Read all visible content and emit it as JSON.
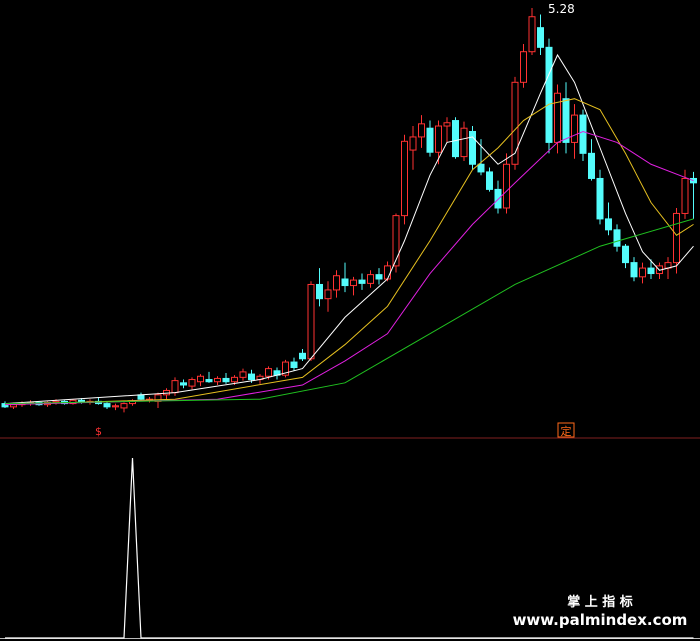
{
  "chart_data": {
    "type": "candlestick",
    "high_label": "5.28",
    "signal_markers": [
      {
        "text": "$",
        "index": 11,
        "color": "#ff3232"
      },
      {
        "text": "定",
        "index": 66,
        "color": "#ff6a1a"
      }
    ],
    "watermark": {
      "title": "掌 上 指 标",
      "url": "www.palmindex.com"
    },
    "ylim": [
      1.345,
      5.28
    ],
    "up_color": "#ff3232",
    "down_color": "#54fcfc",
    "candles": [
      [
        1.66,
        1.68,
        1.62,
        1.63
      ],
      [
        1.63,
        1.67,
        1.61,
        1.65
      ],
      [
        1.65,
        1.68,
        1.63,
        1.66
      ],
      [
        1.66,
        1.69,
        1.64,
        1.67
      ],
      [
        1.67,
        1.68,
        1.64,
        1.65
      ],
      [
        1.65,
        1.68,
        1.63,
        1.67
      ],
      [
        1.67,
        1.7,
        1.65,
        1.68
      ],
      [
        1.68,
        1.69,
        1.65,
        1.66
      ],
      [
        1.66,
        1.7,
        1.65,
        1.69
      ],
      [
        1.69,
        1.71,
        1.66,
        1.67
      ],
      [
        1.67,
        1.7,
        1.65,
        1.68
      ],
      [
        1.68,
        1.72,
        1.65,
        1.66
      ],
      [
        1.66,
        1.68,
        1.61,
        1.63
      ],
      [
        1.63,
        1.66,
        1.6,
        1.64
      ],
      [
        1.62,
        1.67,
        1.58,
        1.66
      ],
      [
        1.66,
        1.7,
        1.64,
        1.68
      ],
      [
        1.74,
        1.76,
        1.68,
        1.7
      ],
      [
        1.69,
        1.72,
        1.67,
        1.7
      ],
      [
        1.68,
        1.76,
        1.62,
        1.74
      ],
      [
        1.74,
        1.8,
        1.7,
        1.78
      ],
      [
        1.76,
        1.9,
        1.73,
        1.87
      ],
      [
        1.85,
        1.88,
        1.8,
        1.83
      ],
      [
        1.82,
        1.9,
        1.79,
        1.88
      ],
      [
        1.86,
        1.93,
        1.82,
        1.91
      ],
      [
        1.88,
        1.95,
        1.85,
        1.86
      ],
      [
        1.86,
        1.91,
        1.83,
        1.89
      ],
      [
        1.89,
        1.94,
        1.84,
        1.86
      ],
      [
        1.86,
        1.92,
        1.83,
        1.9
      ],
      [
        1.9,
        1.98,
        1.87,
        1.95
      ],
      [
        1.93,
        1.97,
        1.85,
        1.88
      ],
      [
        1.88,
        1.93,
        1.84,
        1.91
      ],
      [
        1.91,
        2.0,
        1.88,
        1.98
      ],
      [
        1.96,
        1.99,
        1.88,
        1.92
      ],
      [
        1.92,
        2.06,
        1.9,
        2.04
      ],
      [
        2.04,
        2.08,
        1.96,
        1.99
      ],
      [
        2.12,
        2.16,
        2.05,
        2.07
      ],
      [
        2.07,
        2.78,
        2.05,
        2.75
      ],
      [
        2.75,
        2.9,
        2.55,
        2.62
      ],
      [
        2.62,
        2.78,
        2.5,
        2.7
      ],
      [
        2.7,
        2.88,
        2.63,
        2.83
      ],
      [
        2.8,
        2.95,
        2.68,
        2.74
      ],
      [
        2.74,
        2.82,
        2.65,
        2.79
      ],
      [
        2.79,
        2.85,
        2.7,
        2.76
      ],
      [
        2.76,
        2.88,
        2.72,
        2.84
      ],
      [
        2.84,
        2.9,
        2.75,
        2.8
      ],
      [
        2.8,
        2.96,
        2.78,
        2.92
      ],
      [
        2.92,
        3.4,
        2.86,
        3.38
      ],
      [
        3.38,
        4.12,
        3.3,
        4.06
      ],
      [
        3.98,
        4.2,
        3.8,
        4.1
      ],
      [
        4.1,
        4.3,
        4.0,
        4.22
      ],
      [
        4.18,
        4.25,
        3.92,
        3.96
      ],
      [
        3.96,
        4.25,
        3.85,
        4.2
      ],
      [
        4.2,
        4.28,
        4.05,
        4.23
      ],
      [
        4.25,
        4.28,
        3.9,
        3.92
      ],
      [
        3.92,
        4.24,
        3.88,
        4.18
      ],
      [
        4.15,
        4.2,
        3.8,
        3.85
      ],
      [
        3.85,
        4.08,
        3.75,
        3.78
      ],
      [
        3.78,
        3.82,
        3.6,
        3.62
      ],
      [
        3.62,
        3.7,
        3.4,
        3.45
      ],
      [
        3.45,
        3.95,
        3.4,
        3.85
      ],
      [
        3.85,
        4.65,
        3.8,
        4.6
      ],
      [
        4.6,
        4.95,
        4.55,
        4.88
      ],
      [
        4.88,
        5.28,
        4.85,
        5.2
      ],
      [
        5.1,
        5.22,
        4.85,
        4.92
      ],
      [
        4.92,
        5.0,
        3.95,
        4.05
      ],
      [
        4.05,
        4.58,
        3.95,
        4.5
      ],
      [
        4.45,
        4.6,
        3.95,
        4.05
      ],
      [
        4.05,
        4.4,
        3.9,
        4.3
      ],
      [
        4.3,
        4.35,
        3.88,
        3.95
      ],
      [
        3.95,
        4.08,
        3.7,
        3.72
      ],
      [
        3.72,
        3.8,
        3.3,
        3.35
      ],
      [
        3.35,
        3.5,
        3.2,
        3.25
      ],
      [
        3.25,
        3.3,
        3.05,
        3.1
      ],
      [
        3.1,
        3.12,
        2.9,
        2.95
      ],
      [
        2.95,
        3.0,
        2.78,
        2.82
      ],
      [
        2.82,
        2.95,
        2.76,
        2.9
      ],
      [
        2.9,
        2.98,
        2.8,
        2.85
      ],
      [
        2.85,
        2.95,
        2.8,
        2.92
      ],
      [
        2.9,
        3.0,
        2.8,
        2.95
      ],
      [
        2.95,
        3.45,
        2.85,
        3.4
      ],
      [
        3.4,
        3.8,
        3.35,
        3.72
      ],
      [
        3.72,
        3.78,
        3.35,
        3.68
      ]
    ],
    "lines": [
      {
        "color": "#ffffff",
        "x": [
          0,
          20,
          30,
          35,
          40,
          45,
          47,
          50,
          52,
          55,
          58,
          60,
          63,
          65,
          67,
          70,
          73,
          75,
          77,
          79,
          81
        ],
        "values": [
          1.66,
          1.76,
          1.88,
          1.98,
          2.45,
          2.8,
          3.15,
          3.75,
          4.05,
          4.1,
          3.85,
          3.95,
          4.5,
          4.85,
          4.6,
          4.0,
          3.4,
          3.05,
          2.88,
          2.92,
          3.1
        ]
      },
      {
        "color": "#e6c020",
        "x": [
          0,
          20,
          35,
          40,
          45,
          50,
          55,
          58,
          61,
          64,
          67,
          70,
          73,
          76,
          79,
          81
        ],
        "values": [
          1.65,
          1.7,
          1.9,
          2.2,
          2.55,
          3.15,
          3.8,
          4.0,
          4.25,
          4.4,
          4.45,
          4.35,
          3.95,
          3.5,
          3.2,
          3.3
        ]
      },
      {
        "color": "#e020e0",
        "x": [
          0,
          25,
          35,
          40,
          45,
          50,
          55,
          60,
          65,
          68,
          72,
          76,
          81
        ],
        "values": [
          1.65,
          1.7,
          1.83,
          2.05,
          2.3,
          2.85,
          3.3,
          3.68,
          4.05,
          4.15,
          4.05,
          3.85,
          3.7
        ]
      },
      {
        "color": "#20c020",
        "x": [
          0,
          30,
          40,
          50,
          60,
          70,
          81
        ],
        "values": [
          1.66,
          1.7,
          1.85,
          2.3,
          2.75,
          3.1,
          3.35
        ]
      }
    ],
    "indicator": {
      "color": "#ffffff",
      "ylim": [
        0,
        1.1
      ],
      "x": [
        0,
        14,
        15,
        16,
        81
      ],
      "values": [
        0,
        0,
        1,
        0,
        0
      ]
    }
  }
}
